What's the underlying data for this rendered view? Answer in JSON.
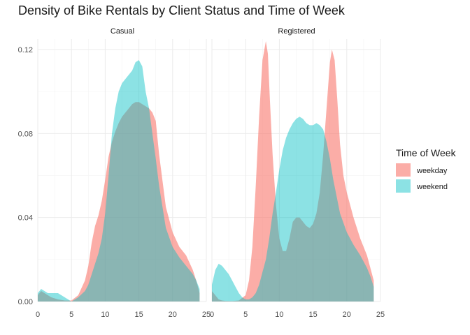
{
  "chart_data": {
    "type": "area",
    "title": "Density of Bike Rentals by Client Status and Time of Week",
    "xlabel": "",
    "ylabel": "",
    "xlim": [
      0,
      25
    ],
    "ylim": [
      0,
      0.125
    ],
    "x_ticks": [
      0,
      5,
      10,
      15,
      20,
      25
    ],
    "y_ticks": [
      0.0,
      0.04,
      0.08,
      0.12
    ],
    "y_tick_labels": [
      "0.00",
      "0.04",
      "0.08",
      "0.12"
    ],
    "grid": true,
    "legend": {
      "title": "Time of Week",
      "position": "right",
      "entries": [
        {
          "name": "weekday",
          "color": "#F8766D"
        },
        {
          "name": "weekend",
          "color": "#00BFC4"
        }
      ]
    },
    "facets": [
      {
        "label": "Casual",
        "series": [
          {
            "name": "weekday",
            "x": [
              0,
              0.5,
              1,
              1.5,
              2,
              3,
              4,
              5,
              6,
              7,
              7.5,
              8,
              8.5,
              9,
              9.5,
              10,
              10.5,
              11,
              11.5,
              12,
              12.5,
              13,
              13.5,
              14,
              14.5,
              15,
              15.5,
              16,
              16.5,
              17,
              17.5,
              18,
              19,
              20,
              21,
              22,
              23,
              23.5,
              24
            ],
            "y": [
              0.003,
              0.005,
              0.004,
              0.003,
              0.002,
              0.001,
              0.0005,
              0.0005,
              0.003,
              0.01,
              0.017,
              0.028,
              0.036,
              0.041,
              0.048,
              0.058,
              0.069,
              0.076,
              0.081,
              0.085,
              0.088,
              0.09,
              0.092,
              0.094,
              0.095,
              0.095,
              0.094,
              0.093,
              0.092,
              0.09,
              0.086,
              0.07,
              0.045,
              0.033,
              0.026,
              0.022,
              0.015,
              0.01,
              0.004
            ]
          },
          {
            "name": "weekend",
            "x": [
              0,
              0.5,
              1,
              1.5,
              2,
              2.5,
              3,
              3.5,
              4,
              5,
              6,
              7,
              7.5,
              8,
              8.5,
              9,
              9.5,
              10,
              10.5,
              11,
              11.5,
              12,
              12.5,
              13,
              13.5,
              14,
              14.5,
              15,
              15.5,
              16,
              16.5,
              17,
              17.5,
              18,
              19,
              20,
              21,
              22,
              23,
              23.5,
              24
            ],
            "y": [
              0.004,
              0.006,
              0.005,
              0.004,
              0.004,
              0.004,
              0.004,
              0.003,
              0.002,
              0.0,
              0.002,
              0.005,
              0.008,
              0.013,
              0.018,
              0.023,
              0.03,
              0.042,
              0.06,
              0.08,
              0.092,
              0.1,
              0.104,
              0.106,
              0.108,
              0.11,
              0.114,
              0.115,
              0.112,
              0.1,
              0.092,
              0.08,
              0.068,
              0.055,
              0.035,
              0.026,
              0.021,
              0.017,
              0.013,
              0.01,
              0.006
            ]
          }
        ]
      },
      {
        "label": "Registered",
        "series": [
          {
            "name": "weekday",
            "x": [
              0,
              0.5,
              1,
              1.5,
              2,
              3,
              4,
              5,
              5.5,
              6,
              6.5,
              7,
              7.5,
              8,
              8.3,
              8.6,
              9,
              9.5,
              10,
              10.5,
              11,
              11.5,
              12,
              12.5,
              13,
              13.5,
              14,
              14.5,
              15,
              15.5,
              16,
              16.5,
              17,
              17.5,
              17.8,
              18.2,
              18.6,
              19,
              19.5,
              20,
              21,
              22,
              23,
              23.5,
              24
            ],
            "y": [
              0.005,
              0.003,
              0.001,
              0.0005,
              0.0003,
              0.0002,
              0.0005,
              0.003,
              0.01,
              0.026,
              0.055,
              0.088,
              0.115,
              0.124,
              0.118,
              0.096,
              0.07,
              0.046,
              0.03,
              0.024,
              0.024,
              0.03,
              0.038,
              0.04,
              0.04,
              0.038,
              0.036,
              0.035,
              0.037,
              0.042,
              0.052,
              0.07,
              0.092,
              0.114,
              0.12,
              0.115,
              0.096,
              0.075,
              0.06,
              0.052,
              0.04,
              0.03,
              0.022,
              0.016,
              0.01
            ]
          },
          {
            "name": "weekend",
            "x": [
              0,
              0.5,
              1,
              1.5,
              2,
              2.5,
              3,
              3.5,
              4,
              4.5,
              5,
              5.5,
              6,
              6.5,
              7,
              7.5,
              8,
              8.5,
              9,
              9.5,
              10,
              10.5,
              11,
              11.5,
              12,
              12.5,
              13,
              13.5,
              14,
              14.5,
              15,
              15.5,
              16,
              16.5,
              17,
              17.5,
              18,
              19,
              20,
              21,
              22,
              23,
              23.5,
              24
            ],
            "y": [
              0.008,
              0.015,
              0.018,
              0.017,
              0.015,
              0.013,
              0.01,
              0.007,
              0.004,
              0.002,
              0.001,
              0.001,
              0.002,
              0.004,
              0.008,
              0.014,
              0.02,
              0.03,
              0.042,
              0.052,
              0.063,
              0.072,
              0.078,
              0.082,
              0.085,
              0.087,
              0.088,
              0.087,
              0.085,
              0.084,
              0.084,
              0.085,
              0.084,
              0.082,
              0.076,
              0.068,
              0.058,
              0.042,
              0.033,
              0.027,
              0.022,
              0.016,
              0.012,
              0.007
            ]
          }
        ]
      }
    ]
  }
}
